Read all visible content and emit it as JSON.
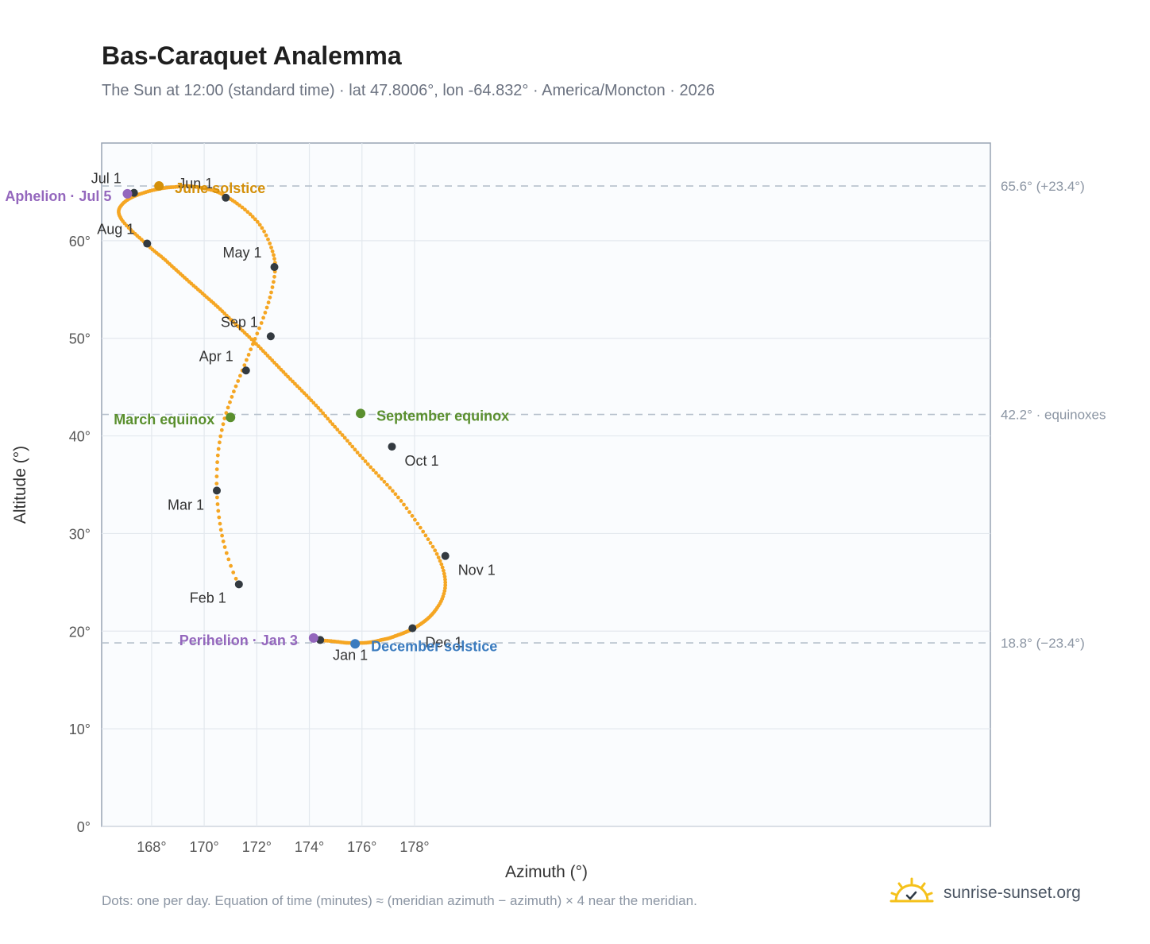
{
  "header": {
    "title": "Bas-Caraquet Analemma",
    "subtitle": "The Sun at 12:00 (standard time) · lat 47.8006°, lon -64.832° · America/Moncton · 2026"
  },
  "footer": {
    "note": "Dots: one per day. Equation of time (minutes) ≈ (meridian azimuth − azimuth) × 4 near the meridian.",
    "brand": "sunrise-sunset.org",
    "brand_icon": "sun-logo-icon"
  },
  "chart_data": {
    "type": "scatter",
    "xlabel": "Azimuth (°)",
    "ylabel": "Altitude (°)",
    "xlim": [
      166.1,
      199.9
    ],
    "ylim": [
      0,
      70
    ],
    "x_ticks": [
      168,
      170,
      172,
      174,
      176,
      178
    ],
    "y_ticks": [
      0,
      10,
      20,
      30,
      40,
      50,
      60
    ],
    "x_tick_labels": [
      "168°",
      "170°",
      "172°",
      "174°",
      "176°",
      "178°"
    ],
    "y_tick_labels": [
      "0°",
      "10°",
      "20°",
      "30°",
      "40°",
      "50°",
      "60°"
    ],
    "grid": true,
    "colors": {
      "path": "#f5a623",
      "month": "#333a40",
      "solstice_june": "#d4900a",
      "solstice_december": "#3a7bbf",
      "equinox": "#5a8f2e",
      "aphelion_perihelion": "#9467bd",
      "refline": "#b6c0cc"
    },
    "series": [
      {
        "x": [
          174.41,
          174.76,
          175.1,
          175.43,
          175.77,
          176.1,
          176.42,
          176.74,
          177.06,
          177.37,
          177.67,
          177.98,
          178.27,
          178.55,
          178.81,
          179.05,
          179.17,
          179.1,
          178.85,
          178.42,
          177.91,
          177.38,
          176.85,
          176.33,
          175.83,
          175.35,
          174.88,
          174.43,
          173.98,
          173.54,
          173.1,
          172.67,
          172.24,
          171.8,
          171.37,
          170.94,
          170.52,
          170.1,
          169.68,
          169.26,
          168.85,
          168.44,
          168.03,
          167.62,
          167.21,
          166.85,
          166.75,
          166.95,
          167.3,
          167.7,
          168.1,
          168.5,
          168.9,
          169.3,
          169.7,
          170.1,
          170.5,
          170.85,
          171.25,
          171.75,
          172.2,
          172.55,
          172.7,
          172.55,
          172.25,
          171.85,
          171.45,
          171.05,
          170.72,
          170.52,
          170.48,
          170.6,
          170.85,
          171.32,
          172.0,
          172.7,
          173.4,
          174.1,
          174.41
        ],
        "y": [
          19.1,
          19.0,
          18.9,
          18.8,
          18.8,
          18.8,
          18.9,
          19.1,
          19.3,
          19.6,
          19.9,
          20.3,
          20.8,
          21.4,
          22.2,
          23.3,
          24.7,
          26.2,
          27.9,
          29.8,
          31.8,
          33.7,
          35.3,
          36.8,
          38.3,
          39.8,
          41.2,
          42.6,
          43.9,
          45.1,
          46.3,
          47.5,
          48.7,
          49.9,
          51.0,
          52.1,
          53.2,
          54.2,
          55.2,
          56.2,
          57.2,
          58.2,
          59.1,
          60.1,
          61.1,
          62.2,
          63.1,
          63.9,
          64.5,
          64.9,
          65.2,
          65.4,
          65.5,
          65.6,
          65.5,
          65.3,
          65.0,
          64.5,
          63.8,
          62.7,
          61.3,
          59.3,
          57.3,
          54.7,
          52.1,
          49.4,
          46.7,
          44.0,
          41.2,
          38.0,
          34.4,
          31.0,
          28.0,
          24.8,
          22.7,
          21.3,
          20.2,
          19.5,
          19.1
        ]
      }
    ],
    "month_points": [
      {
        "label": "Jan 1",
        "x": 174.41,
        "y": 19.1
      },
      {
        "label": "Feb 1",
        "x": 171.32,
        "y": 24.8
      },
      {
        "label": "Mar 1",
        "x": 170.48,
        "y": 34.4
      },
      {
        "label": "Apr 1",
        "x": 171.59,
        "y": 46.7
      },
      {
        "label": "May 1",
        "x": 172.67,
        "y": 57.3
      },
      {
        "label": "Jun 1",
        "x": 170.82,
        "y": 64.4
      },
      {
        "label": "Jul 1",
        "x": 167.33,
        "y": 64.9
      },
      {
        "label": "Aug 1",
        "x": 167.83,
        "y": 59.7
      },
      {
        "label": "Sep 1",
        "x": 172.53,
        "y": 50.2
      },
      {
        "label": "Oct 1",
        "x": 177.14,
        "y": 38.9
      },
      {
        "label": "Nov 1",
        "x": 179.17,
        "y": 27.7
      },
      {
        "label": "Dec 1",
        "x": 177.92,
        "y": 20.3
      }
    ],
    "special_points": [
      {
        "label": "June solstice",
        "x": 168.28,
        "y": 65.6,
        "kind": "solstice_june"
      },
      {
        "label": "December solstice",
        "x": 175.74,
        "y": 18.7,
        "kind": "solstice_december"
      },
      {
        "label": "March equinox",
        "x": 171.0,
        "y": 41.9,
        "kind": "equinox"
      },
      {
        "label": "September equinox",
        "x": 175.95,
        "y": 42.3,
        "kind": "equinox"
      },
      {
        "label": "Aphelion · Jul 5",
        "x": 167.08,
        "y": 64.8,
        "kind": "aphelion_perihelion"
      },
      {
        "label": "Perihelion · Jan 3",
        "x": 174.16,
        "y": 19.3,
        "kind": "aphelion_perihelion"
      }
    ],
    "reference_lines": [
      {
        "y": 65.6,
        "label": "65.6° (+23.4°)"
      },
      {
        "y": 42.2,
        "label": "42.2° · equinoxes"
      },
      {
        "y": 18.8,
        "label": "18.8° (−23.4°)"
      }
    ]
  }
}
